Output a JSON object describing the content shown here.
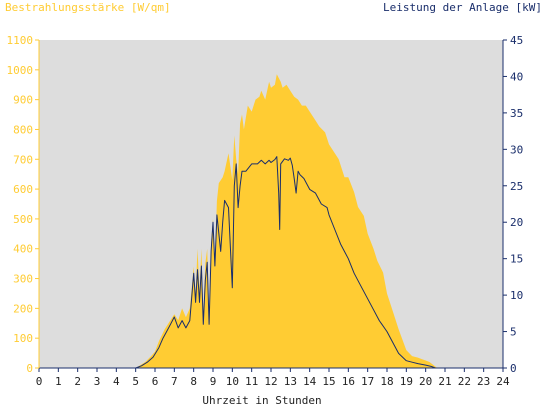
{
  "chart_data": {
    "type": "area",
    "left_axis_title": "Bestrahlungsstärke [W/qm]",
    "right_axis_title": "Leistung der Anlage [kW]",
    "xlabel": "Uhrzeit in Stunden",
    "xlim": [
      0,
      24
    ],
    "x_ticks": [
      "0",
      "1",
      "2",
      "3",
      "4",
      "5",
      "6",
      "7",
      "8",
      "9",
      "10",
      "11",
      "12",
      "13",
      "14",
      "15",
      "16",
      "17",
      "18",
      "19",
      "20",
      "21",
      "22",
      "23",
      "24"
    ],
    "left_ylim": [
      0,
      1100
    ],
    "left_ticks": [
      "0",
      "100",
      "200",
      "300",
      "400",
      "500",
      "600",
      "700",
      "800",
      "900",
      "1000",
      "1100"
    ],
    "right_ylim": [
      0,
      45
    ],
    "right_ticks": [
      "0",
      "5",
      "10",
      "15",
      "20",
      "25",
      "30",
      "35",
      "40",
      "45"
    ],
    "grid": false,
    "colors": {
      "plot_background": "#dddddd",
      "irradiance_fill": "#ffcc33",
      "power_line": "#1a2e6b",
      "left_axis_text": "#ffcc33",
      "right_axis_text": "#1a2e6b"
    },
    "series": [
      {
        "axis": "left",
        "style": "area",
        "points": [
          [
            0,
            0
          ],
          [
            5,
            0
          ],
          [
            5.2,
            8
          ],
          [
            5.5,
            20
          ],
          [
            5.8,
            40
          ],
          [
            6,
            55
          ],
          [
            6.2,
            90
          ],
          [
            6.5,
            130
          ],
          [
            6.7,
            150
          ],
          [
            7,
            180
          ],
          [
            7.2,
            160
          ],
          [
            7.4,
            200
          ],
          [
            7.6,
            170
          ],
          [
            7.8,
            200
          ],
          [
            8,
            340
          ],
          [
            8.1,
            250
          ],
          [
            8.2,
            400
          ],
          [
            8.3,
            260
          ],
          [
            8.4,
            400
          ],
          [
            8.5,
            180
          ],
          [
            8.6,
            350
          ],
          [
            8.7,
            400
          ],
          [
            8.8,
            180
          ],
          [
            8.9,
            420
          ],
          [
            9,
            500
          ],
          [
            9.1,
            350
          ],
          [
            9.2,
            560
          ],
          [
            9.3,
            620
          ],
          [
            9.5,
            640
          ],
          [
            9.6,
            660
          ],
          [
            9.8,
            720
          ],
          [
            10,
            630
          ],
          [
            10.1,
            780
          ],
          [
            10.2,
            700
          ],
          [
            10.3,
            650
          ],
          [
            10.4,
            820
          ],
          [
            10.5,
            850
          ],
          [
            10.6,
            800
          ],
          [
            10.8,
            880
          ],
          [
            11,
            860
          ],
          [
            11.2,
            900
          ],
          [
            11.4,
            910
          ],
          [
            11.5,
            930
          ],
          [
            11.7,
            900
          ],
          [
            11.9,
            960
          ],
          [
            12,
            940
          ],
          [
            12.2,
            950
          ],
          [
            12.3,
            985
          ],
          [
            12.5,
            960
          ],
          [
            12.6,
            940
          ],
          [
            12.8,
            950
          ],
          [
            13,
            930
          ],
          [
            13.2,
            910
          ],
          [
            13.4,
            900
          ],
          [
            13.6,
            880
          ],
          [
            13.8,
            880
          ],
          [
            14,
            860
          ],
          [
            14.3,
            830
          ],
          [
            14.5,
            810
          ],
          [
            14.8,
            790
          ],
          [
            15,
            750
          ],
          [
            15.3,
            720
          ],
          [
            15.5,
            700
          ],
          [
            15.8,
            640
          ],
          [
            16,
            640
          ],
          [
            16.3,
            590
          ],
          [
            16.5,
            540
          ],
          [
            16.8,
            510
          ],
          [
            17,
            450
          ],
          [
            17.3,
            400
          ],
          [
            17.5,
            360
          ],
          [
            17.8,
            320
          ],
          [
            18,
            250
          ],
          [
            18.3,
            190
          ],
          [
            18.6,
            130
          ],
          [
            19,
            60
          ],
          [
            19.3,
            40
          ],
          [
            19.6,
            35
          ],
          [
            19.8,
            30
          ],
          [
            20,
            25
          ],
          [
            20.2,
            20
          ],
          [
            20.5,
            5
          ],
          [
            20.6,
            0
          ],
          [
            24,
            0
          ]
        ]
      },
      {
        "axis": "right",
        "style": "line",
        "points": [
          [
            0,
            0
          ],
          [
            5,
            0
          ],
          [
            5.3,
            0.3
          ],
          [
            5.6,
            0.8
          ],
          [
            5.9,
            1.5
          ],
          [
            6.2,
            2.8
          ],
          [
            6.4,
            4
          ],
          [
            6.6,
            5
          ],
          [
            6.8,
            6
          ],
          [
            7,
            7
          ],
          [
            7.2,
            5.5
          ],
          [
            7.4,
            6.5
          ],
          [
            7.6,
            5.5
          ],
          [
            7.8,
            6.5
          ],
          [
            8,
            13
          ],
          [
            8.1,
            9
          ],
          [
            8.2,
            13.5
          ],
          [
            8.3,
            9
          ],
          [
            8.4,
            14
          ],
          [
            8.5,
            6
          ],
          [
            8.6,
            12
          ],
          [
            8.7,
            14.5
          ],
          [
            8.8,
            6
          ],
          [
            8.9,
            16
          ],
          [
            9,
            20
          ],
          [
            9.1,
            14
          ],
          [
            9.2,
            21
          ],
          [
            9.4,
            16
          ],
          [
            9.5,
            20
          ],
          [
            9.6,
            23
          ],
          [
            9.8,
            22
          ],
          [
            10,
            11
          ],
          [
            10.1,
            25
          ],
          [
            10.2,
            28
          ],
          [
            10.3,
            22
          ],
          [
            10.4,
            25
          ],
          [
            10.5,
            27
          ],
          [
            10.7,
            27
          ],
          [
            11,
            28
          ],
          [
            11.3,
            28
          ],
          [
            11.5,
            28.5
          ],
          [
            11.7,
            28
          ],
          [
            11.9,
            28.5
          ],
          [
            12,
            28.2
          ],
          [
            12.2,
            28.6
          ],
          [
            12.3,
            29
          ],
          [
            12.4,
            24
          ],
          [
            12.45,
            19
          ],
          [
            12.5,
            28
          ],
          [
            12.7,
            28.7
          ],
          [
            12.9,
            28.5
          ],
          [
            13,
            28.8
          ],
          [
            13.1,
            27.8
          ],
          [
            13.2,
            26
          ],
          [
            13.3,
            24
          ],
          [
            13.4,
            27
          ],
          [
            13.5,
            26.5
          ],
          [
            13.7,
            26
          ],
          [
            14,
            24.5
          ],
          [
            14.3,
            24
          ],
          [
            14.6,
            22.5
          ],
          [
            14.9,
            22
          ],
          [
            15,
            21
          ],
          [
            15.3,
            19
          ],
          [
            15.6,
            17
          ],
          [
            16,
            15
          ],
          [
            16.3,
            13
          ],
          [
            16.6,
            11.5
          ],
          [
            17,
            9.5
          ],
          [
            17.3,
            8
          ],
          [
            17.6,
            6.5
          ],
          [
            18,
            5
          ],
          [
            18.3,
            3.5
          ],
          [
            18.6,
            2
          ],
          [
            19,
            1
          ],
          [
            19.3,
            0.8
          ],
          [
            19.6,
            0.6
          ],
          [
            20,
            0.4
          ],
          [
            20.3,
            0.2
          ],
          [
            20.5,
            0
          ],
          [
            24,
            0
          ]
        ]
      }
    ]
  }
}
